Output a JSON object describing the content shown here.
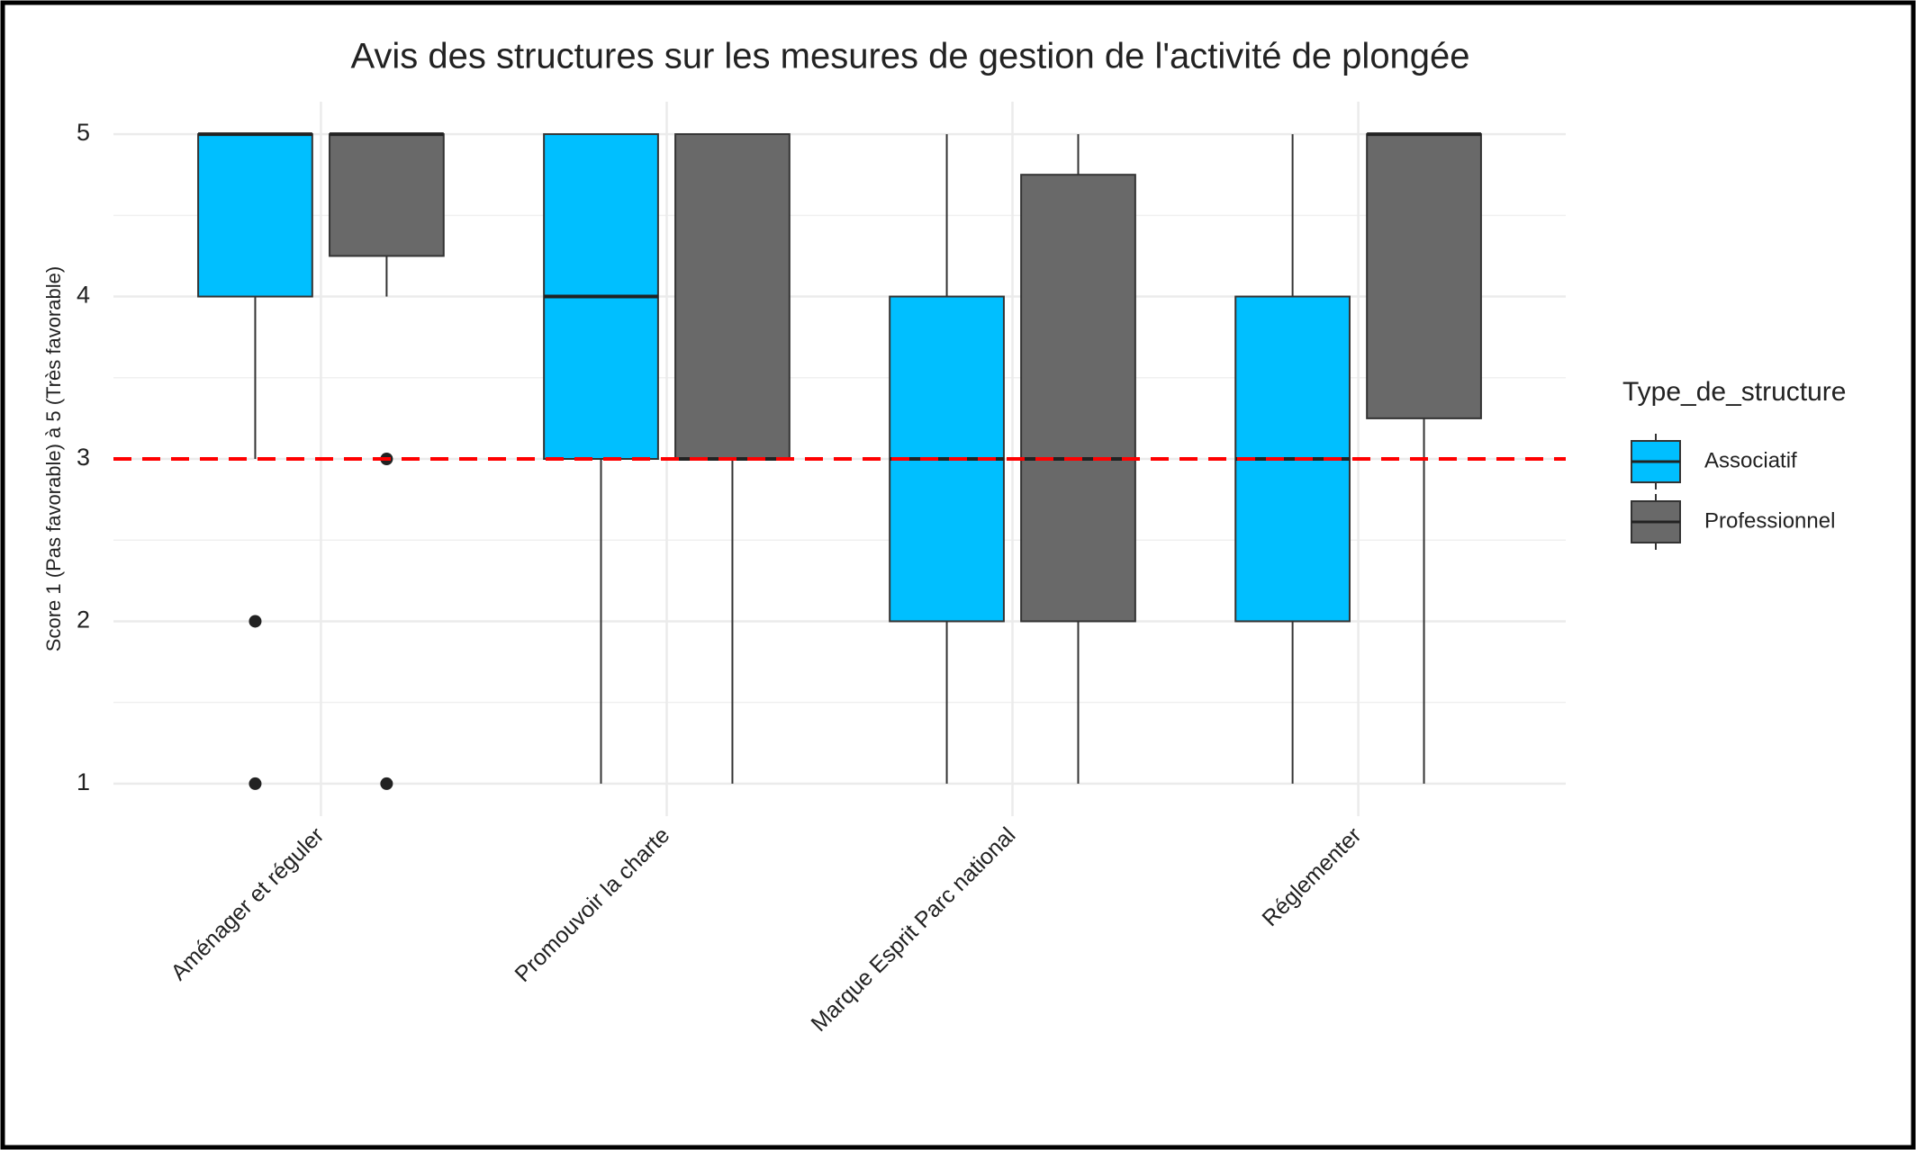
{
  "chart_data": {
    "type": "boxplot",
    "title": "Avis des structures sur les mesures de gestion de l'activité de plongée",
    "y_label": "Score 1 (Pas favorable) à 5 (Très favorable)",
    "categories": [
      "Aménager et réguler",
      "Promouvoir la charte",
      "Marque Esprit Parc national",
      "Réglementer"
    ],
    "legend_title": "Type_de_structure",
    "legend_position": "right",
    "series": [
      {
        "name": "Associatif",
        "color": "#00bfff",
        "min": [
          3,
          1,
          1,
          1
        ],
        "q1": [
          4,
          3,
          2,
          2
        ],
        "median": [
          5,
          4,
          3,
          3
        ],
        "q3": [
          5,
          5,
          4,
          4
        ],
        "max": [
          5,
          5,
          5,
          5
        ],
        "outliers": [
          [
            2,
            1
          ],
          [],
          [],
          []
        ]
      },
      {
        "name": "Professionnel",
        "color": "#696969",
        "min": [
          4,
          1,
          1,
          1
        ],
        "q1": [
          4.25,
          3,
          2,
          3.25
        ],
        "median": [
          5,
          3,
          3,
          5
        ],
        "q3": [
          5,
          5,
          4.75,
          5
        ],
        "max": [
          5,
          5,
          5,
          5
        ],
        "outliers": [
          [
            3,
            1
          ],
          [],
          [],
          []
        ]
      }
    ],
    "ylim": [
      0.8,
      5.2
    ],
    "yticks": [
      1,
      2,
      3,
      4,
      5
    ],
    "grid": true,
    "reference_line": {
      "value": 3,
      "color": "#ff0000"
    }
  }
}
